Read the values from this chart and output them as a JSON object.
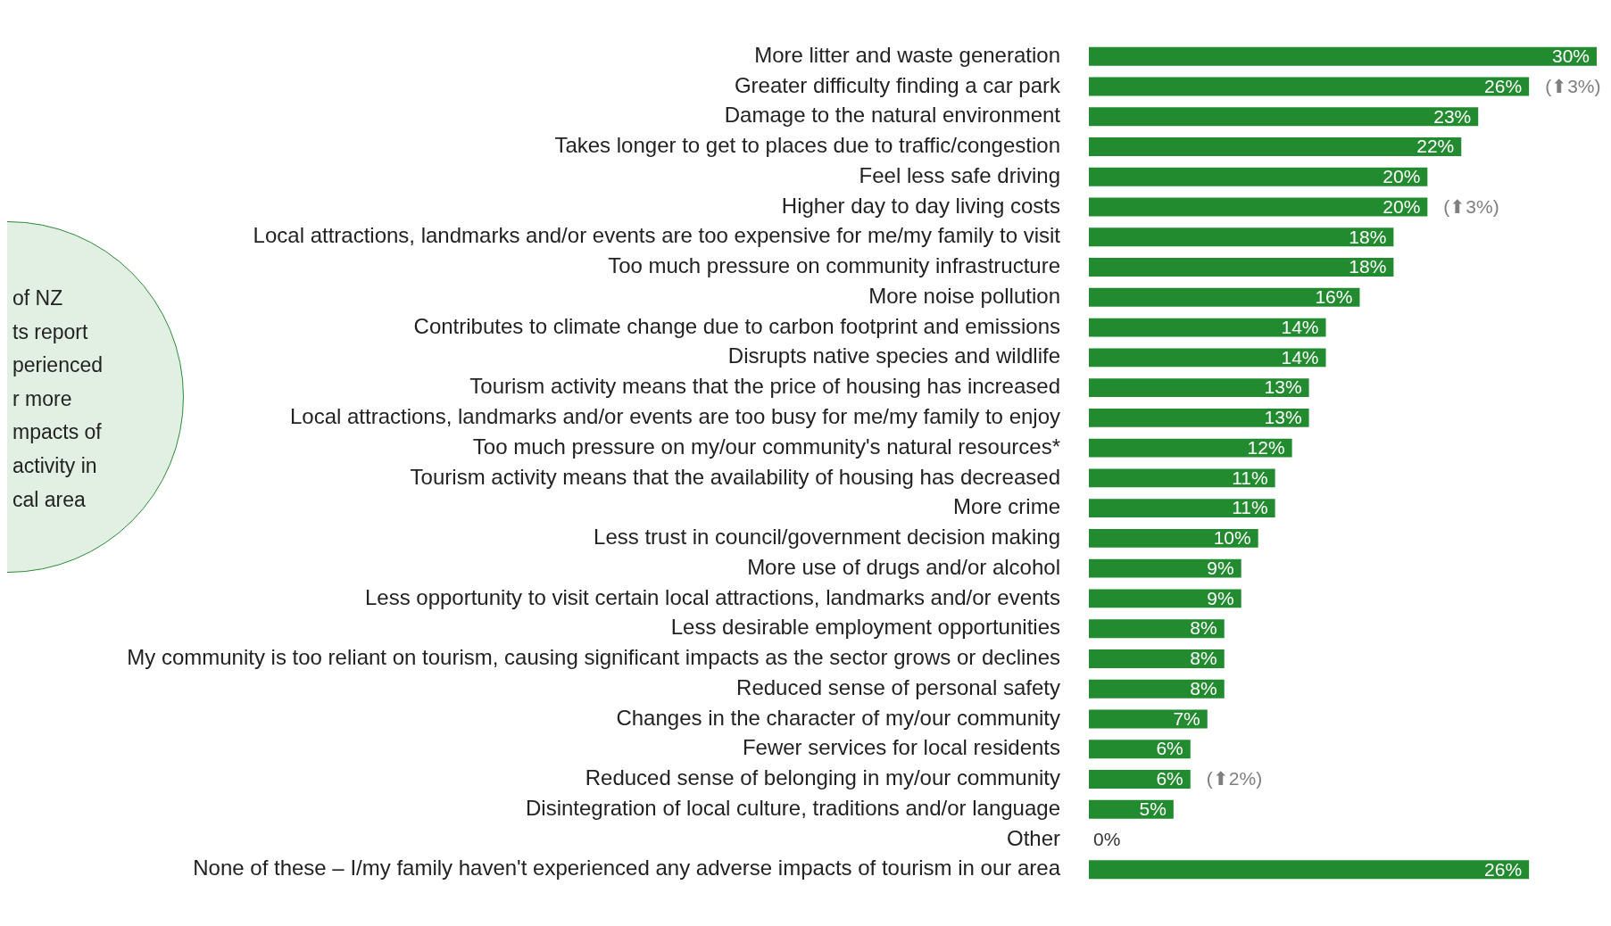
{
  "chart_data": {
    "type": "bar",
    "orientation": "horizontal",
    "legend": false,
    "tick_labels": "y",
    "categories": [
      "More litter and waste generation",
      "Greater difficulty finding a car park",
      "Damage to the natural environment",
      "Takes longer to get to places due to traffic/congestion",
      "Feel less safe driving",
      "Higher day to day living costs",
      "Local attractions, landmarks and/or events are too expensive for me/my family to visit",
      "Too much pressure on community infrastructure",
      "More noise pollution",
      "Contributes to climate change due to carbon footprint and emissions",
      "Disrupts native species and wildlife",
      "Tourism activity means that the price of housing has increased",
      "Local attractions, landmarks and/or events are too busy for me/my family to enjoy",
      "Too much pressure on my/our community's natural resources*",
      "Tourism activity means that the availability of housing has decreased",
      "More crime",
      "Less trust in council/government decision making",
      "More use of drugs and/or alcohol",
      "Less opportunity to visit certain local attractions, landmarks and/or events",
      "Less desirable employment opportunities",
      "My community is too reliant on tourism, causing significant impacts as the sector grows or declines",
      "Reduced sense of personal safety",
      "Changes in the character of my/our community",
      "Fewer services for local residents",
      "Reduced sense of belonging in my/our community",
      "Disintegration of local culture, traditions and/or language",
      "Other",
      "None of these – I/my family haven't experienced any adverse impacts of tourism in our area"
    ],
    "values": [
      30,
      26,
      23,
      22,
      20,
      20,
      18,
      18,
      16,
      14,
      14,
      13,
      13,
      12,
      11,
      11,
      10,
      9,
      9,
      8,
      8,
      8,
      7,
      6,
      6,
      5,
      0,
      26
    ],
    "value_labels": [
      "30%",
      "26%",
      "23%",
      "22%",
      "20%",
      "20%",
      "18%",
      "18%",
      "16%",
      "14%",
      "14%",
      "13%",
      "13%",
      "12%",
      "11%",
      "11%",
      "10%",
      "9%",
      "9%",
      "8%",
      "8%",
      "8%",
      "7%",
      "6%",
      "6%",
      "5%",
      "0%",
      "26%"
    ],
    "color": "#238b2f",
    "annotations": [
      {
        "text": "(⬆3%)",
        "x": 26,
        "y": "Greater difficulty finding a car park"
      },
      {
        "text": "(⬆3%)",
        "x": 20,
        "y": "Higher day to day living costs"
      },
      {
        "text": "(⬆2%)",
        "x": 6,
        "y": "Reduced sense of belonging in my/our community"
      },
      "of NZ\nts report\nperienced\nr more\nmpacts of\nactivity in\ncal area"
    ]
  }
}
